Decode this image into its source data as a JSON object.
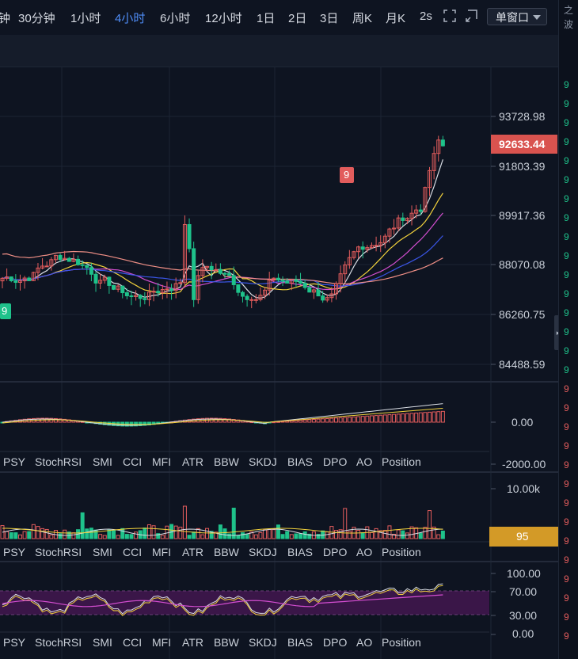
{
  "toolbar": {
    "timeframes": [
      {
        "label": "钟",
        "active": false
      },
      {
        "label": "30分钟",
        "active": false
      },
      {
        "label": "1小时",
        "active": false
      },
      {
        "label": "4小时",
        "active": true
      },
      {
        "label": "6小时",
        "active": false
      },
      {
        "label": "12小时",
        "active": false
      },
      {
        "label": "1日",
        "active": false
      },
      {
        "label": "2日",
        "active": false
      },
      {
        "label": "3日",
        "active": false
      },
      {
        "label": "周K",
        "active": false
      },
      {
        "label": "月K",
        "active": false
      },
      {
        "label": "2s",
        "active": false
      }
    ],
    "window_mode": "单窗口",
    "icons": [
      "fullscreen-icon",
      "screenshot-icon"
    ]
  },
  "main_chart": {
    "price_ticks": [
      "93728.98",
      "91803.39",
      "89917.36",
      "88070.08",
      "86260.75",
      "84488.59"
    ],
    "current_price": "92633.44",
    "marker_top": "9",
    "marker_bottom": "9",
    "colors": {
      "up": "#e25c5c",
      "down": "#1fc28b",
      "ma_white": "#d9dde4",
      "ma_yellow": "#f2d23c",
      "ma_magenta": "#d44ed1",
      "ma_blue": "#3a55e6",
      "ma_salmon": "#f08f86",
      "price_tag": "#d9534f"
    }
  },
  "macd_panel": {
    "ticks": [
      "0.00",
      "-2000.00"
    ]
  },
  "volume_panel": {
    "ticks": [
      "10.00k"
    ],
    "tag_value": "95",
    "tag_color": "#d39a27"
  },
  "rsi_panel": {
    "ticks": [
      "100.00",
      "70.00",
      "30.00",
      "0.00"
    ],
    "band_color": "#3a1648"
  },
  "indicator_tabs": [
    "PSY",
    "StochRSI",
    "SMI",
    "CCI",
    "MFI",
    "ATR",
    "BBW",
    "SKDJ",
    "BIAS",
    "DPO",
    "AO",
    "Position"
  ],
  "side_panel": {
    "top_chars": [
      "之",
      "波"
    ]
  }
}
